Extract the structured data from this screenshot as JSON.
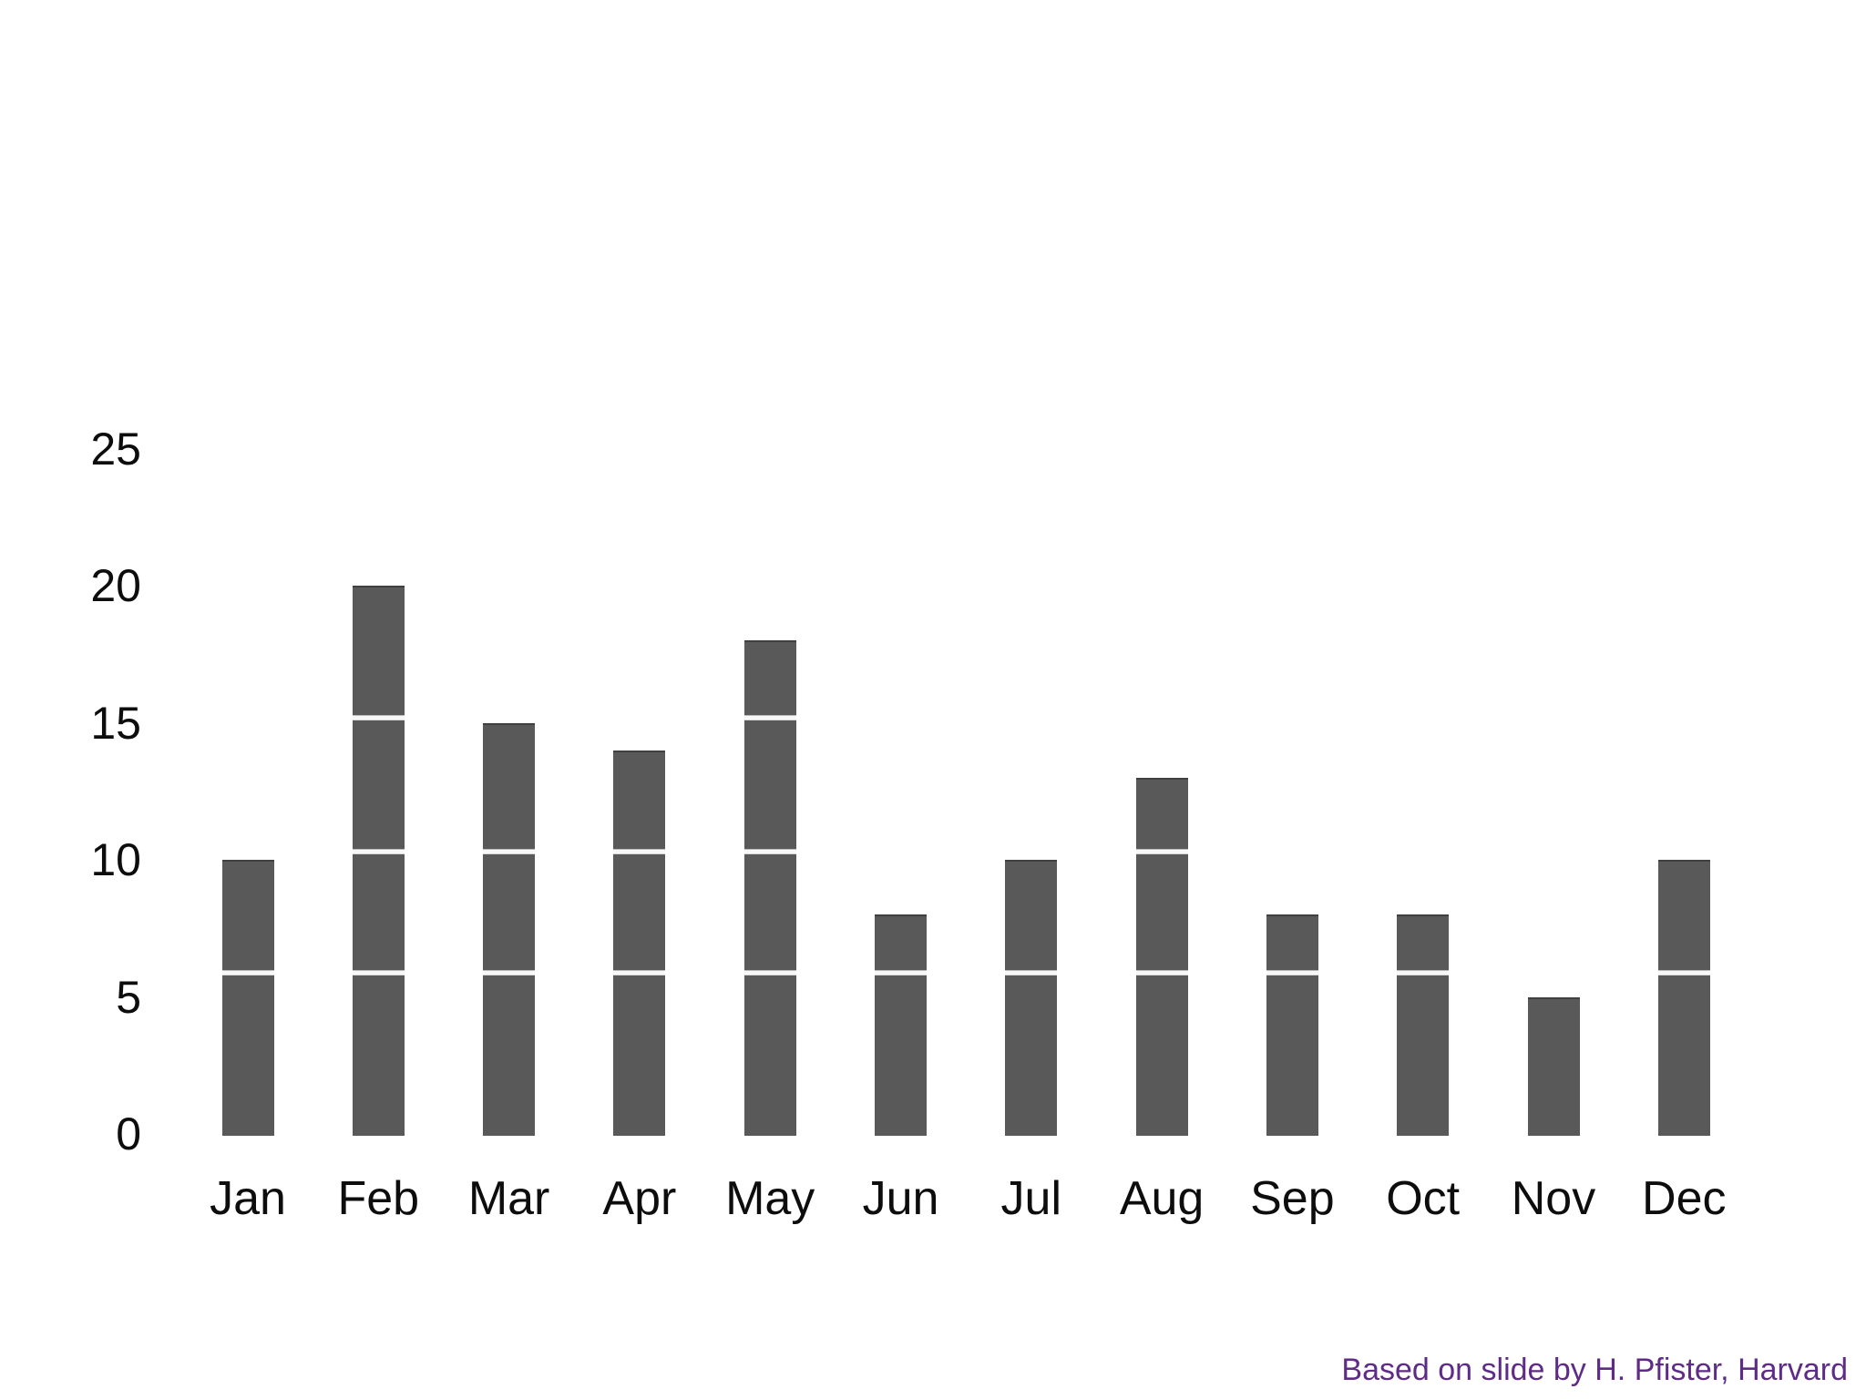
{
  "chart_data": {
    "type": "bar",
    "title": "",
    "xlabel": "",
    "ylabel": "",
    "categories": [
      "Jan",
      "Feb",
      "Mar",
      "Apr",
      "May",
      "Jun",
      "Jul",
      "Aug",
      "Sep",
      "Oct",
      "Nov",
      "Dec"
    ],
    "values": [
      10,
      20,
      15,
      14,
      18,
      8,
      10,
      13,
      8,
      8,
      5,
      10
    ],
    "yticks": [
      0,
      5,
      10,
      15,
      20,
      25
    ],
    "ylim": [
      0,
      25
    ],
    "grid": "off",
    "legend": "none",
    "bar_color": "#595959",
    "segment_divider_color": "#f8f8f8",
    "segment_divider_levels": [
      5.95,
      10.35,
      15.25
    ]
  },
  "attribution": {
    "text": "Based on slide by H. Pfister, Harvard",
    "color": "#5e2c87"
  },
  "colors": {
    "background": "#ffffff",
    "text": "#0d0d0d"
  }
}
